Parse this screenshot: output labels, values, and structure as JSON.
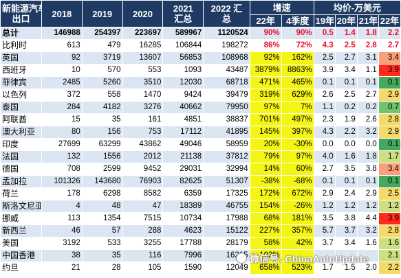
{
  "header": {
    "col_country_l1": "新能源汽车",
    "col_country_l2": "出口",
    "y2018": "2018",
    "y2019": "2019",
    "y2020": "2020",
    "y2021_l1": "2021",
    "y2021_l2": "汇总",
    "y2022_l1": "2022 汇",
    "y2022_l2": "总",
    "growth": "增速",
    "growth_22": "22年",
    "growth_q4": "4季度",
    "price": "均价-万美元",
    "p19": "19年",
    "p20": "20年",
    "p21": "21年",
    "p22": "22年"
  },
  "rows": [
    {
      "name": "总计",
      "y2018": "146988",
      "y2019": "254397",
      "y2020": "223697",
      "y2021": "589967",
      "y2022": "1120524",
      "g22": "90%",
      "gq4": "90%",
      "p19": "0.5",
      "p20": "1.4",
      "p21": "1.8",
      "p22": "2.2"
    },
    {
      "name": "比利时",
      "y2018": "613",
      "y2019": "479",
      "y2020": "16285",
      "y2021": "106844",
      "y2022": "198272",
      "g22": "86%",
      "gq4": "72%",
      "p19": "4.3",
      "p20": "2.5",
      "p21": "2.8",
      "p22": "2.7"
    },
    {
      "name": "英国",
      "y2018": "92",
      "y2019": "3719",
      "y2020": "13607",
      "y2021": "56853",
      "y2022": "108968",
      "g22": "92%",
      "gq4": "162%",
      "p19": "2.5",
      "p20": "2.7",
      "p21": "3.1",
      "p22": "3.4"
    },
    {
      "name": "西班牙",
      "y2018": "10",
      "y2019": "570",
      "y2020": "553",
      "y2021": "1093",
      "y2022": "43487",
      "g22": "3879%",
      "gq4": "8863%",
      "p19": "3.9",
      "p20": "3.4",
      "p21": "1.1",
      "p22": "3.9"
    },
    {
      "name": "菲律宾",
      "y2018": "2485",
      "y2019": "5260",
      "y2020": "3510",
      "y2021": "12030",
      "y2022": "68718",
      "g22": "471%",
      "gq4": "465%",
      "p19": "0.1",
      "p20": "0.1",
      "p21": "0.1",
      "p22": "0.1"
    },
    {
      "name": "以色列",
      "y2018": "372",
      "y2019": "558",
      "y2020": "1470",
      "y2021": "9424",
      "y2022": "39479",
      "g22": "319%",
      "gq4": "629%",
      "p19": "2.6",
      "p20": "2.5",
      "p21": "2.7",
      "p22": "2.9"
    },
    {
      "name": "泰国",
      "y2018": "284",
      "y2019": "4182",
      "y2020": "3276",
      "y2021": "40662",
      "y2022": "79950",
      "g22": "97%",
      "gq4": "7%",
      "p19": "1.1",
      "p20": "0.2",
      "p21": "0.2",
      "p22": "0.7"
    },
    {
      "name": "阿联酋",
      "y2018": "15",
      "y2019": "35",
      "y2020": "161",
      "y2021": "4851",
      "y2022": "38837",
      "g22": "701%",
      "gq4": "497%",
      "p19": "2.3",
      "p20": "1.9",
      "p21": "2.6",
      "p22": "2.8"
    },
    {
      "name": "澳大利亚",
      "y2018": "80",
      "y2019": "156",
      "y2020": "753",
      "y2021": "17112",
      "y2022": "41895",
      "g22": "145%",
      "gq4": "397%",
      "p19": "4.3",
      "p20": "2.2",
      "p21": "3.2",
      "p22": "2.9"
    },
    {
      "name": "印度",
      "y2018": "27699",
      "y2019": "63299",
      "y2020": "43862",
      "y2021": "49046",
      "y2022": "58959",
      "g22": "20%",
      "gq4": "-30%",
      "p19": "0.0",
      "p20": "0.0",
      "p21": "0.0",
      "p22": "0.1"
    },
    {
      "name": "法国",
      "y2018": "132",
      "y2019": "1556",
      "y2020": "2012",
      "y2021": "21138",
      "y2022": "37812",
      "g22": "79%",
      "gq4": "97%",
      "p19": "4.0",
      "p20": "1.6",
      "p21": "1.8",
      "p22": "1.7"
    },
    {
      "name": "德国",
      "y2018": "708",
      "y2019": "2599",
      "y2020": "9452",
      "y2021": "29031",
      "y2022": "32994",
      "g22": "14%",
      "gq4": "60%",
      "p19": "2.7",
      "p20": "3.5",
      "p21": "3.8",
      "p22": "3.4"
    },
    {
      "name": "孟加拉",
      "y2018": "101326",
      "y2019": "143680",
      "y2020": "76903",
      "y2021": "82625",
      "y2022": "51307",
      "g22": "-38%",
      "gq4": "-68%",
      "p19": "0.1",
      "p20": "0.1",
      "p21": "0.1",
      "p22": "0.1"
    },
    {
      "name": "荷兰",
      "y2018": "178",
      "y2019": "6298",
      "y2020": "8582",
      "y2021": "6359",
      "y2022": "17325",
      "g22": "172%",
      "gq4": "672%",
      "p19": "2.9",
      "p20": "2.4",
      "p21": "2.9",
      "p22": "2.5"
    },
    {
      "name": "斯洛文尼亚",
      "y2018": "4",
      "y2019": "48",
      "y2020": "47",
      "y2021": "18389",
      "y2022": "46755",
      "g22": "154%",
      "gq4": "-26%",
      "p19": "1.2",
      "p20": "1.2",
      "p21": "1.2",
      "p22": "1.2"
    },
    {
      "name": "挪威",
      "y2018": "113",
      "y2019": "1354",
      "y2020": "7515",
      "y2021": "10734",
      "y2022": "17988",
      "g22": "68%",
      "gq4": "181%",
      "p19": "3.5",
      "p20": "3.8",
      "p21": "4.4",
      "p22": "3.9"
    },
    {
      "name": "新西兰",
      "y2018": "46",
      "y2019": "57",
      "y2020": "288",
      "y2021": "4623",
      "y2022": "15122",
      "g22": "227%",
      "gq4": "357%",
      "p19": "5.7",
      "p20": "3.7",
      "p21": "3.2",
      "p22": "2.8"
    },
    {
      "name": "美国",
      "y2018": "3192",
      "y2019": "533",
      "y2020": "3255",
      "y2021": "17788",
      "y2022": "28179",
      "g22": "58%",
      "gq4": "42%",
      "p19": "3.7",
      "p20": "3.4",
      "p21": "1.6",
      "p22": "1.6"
    },
    {
      "name": "中国香港",
      "y2018": "38",
      "y2019": "35",
      "y2020": "116",
      "y2021": "7996",
      "y2022": "16215",
      "g22": "103%",
      "gq4": "",
      "p19": "",
      "p20": "",
      "p21": "",
      "p22": "2.1"
    },
    {
      "name": "约旦",
      "y2018": "21",
      "y2019": "28",
      "y2020": "105",
      "y2021": "1590",
      "y2022": "12049",
      "g22": "658%",
      "gq4": "523%",
      "p19": "1.7",
      "p20": "1.5",
      "p21": "2.0",
      "p22": "2.2"
    }
  ],
  "watermark": "微信号: ChinaAutoUpdate",
  "colors": {
    "header_bg": "#1f3a63",
    "stripe": "#dce6f2",
    "growth_yellow": "#f5f515",
    "highlight_red": "#e8112d"
  }
}
